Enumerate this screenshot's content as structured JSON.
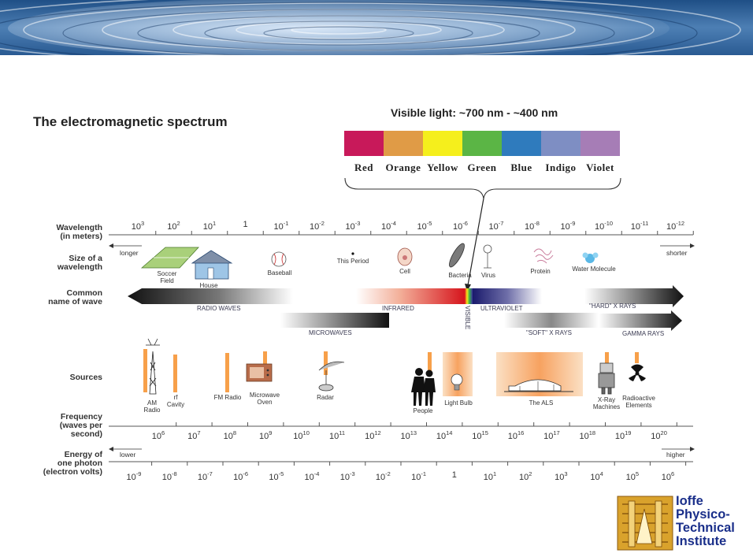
{
  "title": "The electromagnetic spectrum",
  "visible": {
    "title": "Visible light: ~700 nm - ~400 nm",
    "colors": [
      {
        "name": "Red",
        "hex": "#c8195a"
      },
      {
        "name": "Orange",
        "hex": "#e09b46"
      },
      {
        "name": "Yellow",
        "hex": "#f5ef1c"
      },
      {
        "name": "Green",
        "hex": "#5bb545"
      },
      {
        "name": "Blue",
        "hex": "#2f7bbd"
      },
      {
        "name": "Indigo",
        "hex": "#7e8ec3"
      },
      {
        "name": "Violet",
        "hex": "#a67db6"
      }
    ]
  },
  "rows": {
    "wavelength": "Wavelength\n(in meters)",
    "size": "Size of a\nwavelength",
    "common_name": "Common\nname of wave",
    "sources": "Sources",
    "frequency": "Frequency\n(waves per\nsecond)",
    "energy": "Energy of\none photon\n(electron volts)"
  },
  "wavelength_ticks": [
    {
      "base": "10",
      "exp": "3"
    },
    {
      "base": "10",
      "exp": "2"
    },
    {
      "base": "10",
      "exp": "1"
    },
    {
      "base": "1",
      "exp": ""
    },
    {
      "base": "10",
      "exp": "-1"
    },
    {
      "base": "10",
      "exp": "-2"
    },
    {
      "base": "10",
      "exp": "-3"
    },
    {
      "base": "10",
      "exp": "-4"
    },
    {
      "base": "10",
      "exp": "-5"
    },
    {
      "base": "10",
      "exp": "-6"
    },
    {
      "base": "10",
      "exp": "-7"
    },
    {
      "base": "10",
      "exp": "-8"
    },
    {
      "base": "10",
      "exp": "-9"
    },
    {
      "base": "10",
      "exp": "-10"
    },
    {
      "base": "10",
      "exp": "-11"
    },
    {
      "base": "10",
      "exp": "-12"
    }
  ],
  "wavelength_arrow": {
    "left": "longer",
    "right": "shorter"
  },
  "size_items": [
    "Soccer\nField",
    "House",
    "Baseball",
    "This Period",
    "Cell",
    "Bacteria",
    "Virus",
    "Protein",
    "Water Molecule"
  ],
  "waves": {
    "radio": "RADIO WAVES",
    "infrared": "INFRARED",
    "visible": "VISIBLE",
    "ultraviolet": "ULTRAVIOLET",
    "hard_xrays": "\"HARD\" X RAYS",
    "microwaves": "MICROWAVES",
    "soft_xrays": "\"SOFT\" X RAYS",
    "gamma": "GAMMA RAYS"
  },
  "sources": [
    "AM\nRadio",
    "rf\nCavity",
    "FM Radio",
    "Microwave\nOven",
    "Radar",
    "People",
    "Light Bulb",
    "The ALS",
    "X-Ray\nMachines",
    "Radioactive\nElements"
  ],
  "frequency_ticks": [
    {
      "base": "10",
      "exp": "6"
    },
    {
      "base": "10",
      "exp": "7"
    },
    {
      "base": "10",
      "exp": "8"
    },
    {
      "base": "10",
      "exp": "9"
    },
    {
      "base": "10",
      "exp": "10"
    },
    {
      "base": "10",
      "exp": "11"
    },
    {
      "base": "10",
      "exp": "12"
    },
    {
      "base": "10",
      "exp": "13"
    },
    {
      "base": "10",
      "exp": "14"
    },
    {
      "base": "10",
      "exp": "15"
    },
    {
      "base": "10",
      "exp": "16"
    },
    {
      "base": "10",
      "exp": "17"
    },
    {
      "base": "10",
      "exp": "18"
    },
    {
      "base": "10",
      "exp": "19"
    },
    {
      "base": "10",
      "exp": "20"
    }
  ],
  "energy_arrow": {
    "left": "lower",
    "right": "higher"
  },
  "energy_ticks": [
    {
      "base": "10",
      "exp": "-9"
    },
    {
      "base": "10",
      "exp": "-8"
    },
    {
      "base": "10",
      "exp": "-7"
    },
    {
      "base": "10",
      "exp": "-6"
    },
    {
      "base": "10",
      "exp": "-5"
    },
    {
      "base": "10",
      "exp": "-4"
    },
    {
      "base": "10",
      "exp": "-3"
    },
    {
      "base": "10",
      "exp": "-2"
    },
    {
      "base": "10",
      "exp": "-1"
    },
    {
      "base": "1",
      "exp": ""
    },
    {
      "base": "10",
      "exp": "1"
    },
    {
      "base": "10",
      "exp": "2"
    },
    {
      "base": "10",
      "exp": "3"
    },
    {
      "base": "10",
      "exp": "4"
    },
    {
      "base": "10",
      "exp": "5"
    },
    {
      "base": "10",
      "exp": "6"
    }
  ],
  "logo": {
    "lines": [
      "Ioffe",
      "Physico-",
      "Technical",
      "Institute"
    ],
    "color": "#1a2f8a"
  }
}
